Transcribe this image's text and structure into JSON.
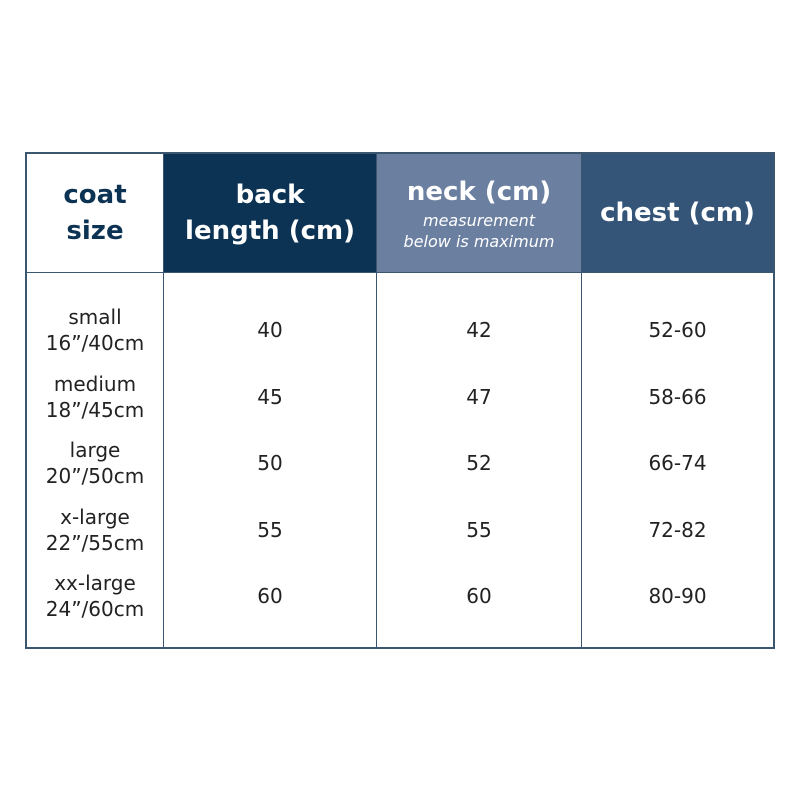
{
  "headers": {
    "size": [
      "coat",
      "size"
    ],
    "back": [
      "back",
      "length (cm)"
    ],
    "neck": "neck (cm)",
    "neck_note": [
      "measurement",
      "below is maximum"
    ],
    "chest": "chest (cm)"
  },
  "rows": [
    {
      "size": "small",
      "length": "16”/40cm",
      "back": "40",
      "neck": "42",
      "chest": "52-60"
    },
    {
      "size": "medium",
      "length": "18”/45cm",
      "back": "45",
      "neck": "47",
      "chest": "58-66"
    },
    {
      "size": "large",
      "length": "20”/50cm",
      "back": "50",
      "neck": "52",
      "chest": "66-74"
    },
    {
      "size": "x-large",
      "length": "22”/55cm",
      "back": "55",
      "neck": "55",
      "chest": "72-82"
    },
    {
      "size": "xx-large",
      "length": "24”/60cm",
      "back": "60",
      "neck": "60",
      "chest": "80-90"
    }
  ],
  "colors": {
    "navy": "#0d3354",
    "slate": "#6b7fa0",
    "blue": "#355578"
  }
}
